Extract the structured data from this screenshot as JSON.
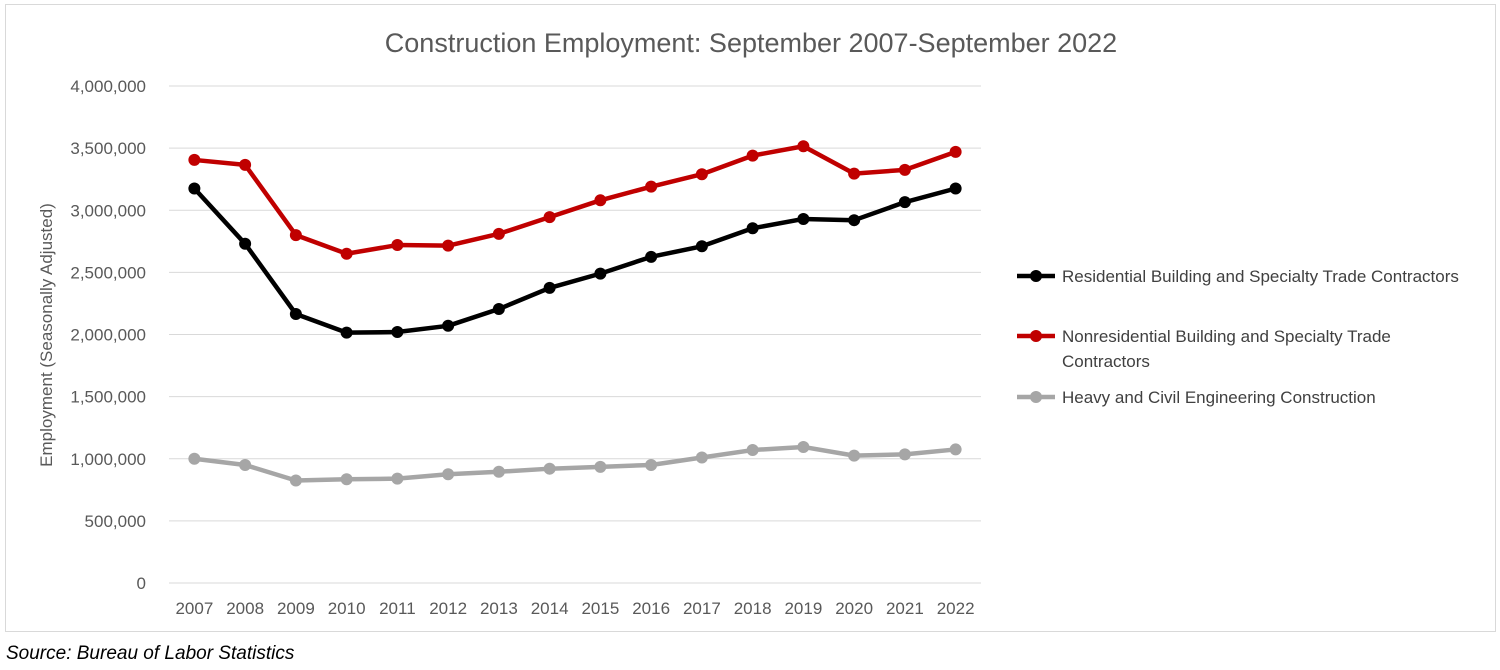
{
  "chart_data": {
    "type": "line",
    "title": "Construction Employment: September 2007-September 2022",
    "xlabel": "",
    "ylabel": "Employment (Seasonally Adjusted)",
    "ylim": [
      0,
      4000000
    ],
    "y_ticks": [
      0,
      500000,
      1000000,
      1500000,
      2000000,
      2500000,
      3000000,
      3500000,
      4000000
    ],
    "y_tick_labels": [
      "0",
      "500,000",
      "1,000,000",
      "1,500,000",
      "2,000,000",
      "2,500,000",
      "3,000,000",
      "3,500,000",
      "4,000,000"
    ],
    "grid": true,
    "legend_position": "right",
    "categories": [
      "2007",
      "2008",
      "2009",
      "2010",
      "2011",
      "2012",
      "2013",
      "2014",
      "2015",
      "2016",
      "2017",
      "2018",
      "2019",
      "2020",
      "2021",
      "2022"
    ],
    "series": [
      {
        "name": "Residential Building and Specialty Trade Contractors",
        "legend_lines": [
          "Residential Building and Specialty Trade Contractors"
        ],
        "color": "#000000",
        "values": [
          3175000,
          2730000,
          2165000,
          2015000,
          2020000,
          2070000,
          2205000,
          2375000,
          2490000,
          2625000,
          2710000,
          2855000,
          2930000,
          2920000,
          3065000,
          3175000
        ]
      },
      {
        "name": "Nonresidential Building and Specialty Trade Contractors",
        "legend_lines": [
          "Nonresidential Building and Specialty Trade",
          "Contractors"
        ],
        "color": "#c00000",
        "values": [
          3405000,
          3365000,
          2800000,
          2650000,
          2720000,
          2715000,
          2810000,
          2945000,
          3080000,
          3190000,
          3290000,
          3440000,
          3515000,
          3295000,
          3325000,
          3470000
        ]
      },
      {
        "name": "Heavy and Civil Engineering Construction",
        "legend_lines": [
          "Heavy and Civil Engineering Construction"
        ],
        "color": "#a6a6a6",
        "values": [
          1000000,
          950000,
          825000,
          835000,
          840000,
          875000,
          895000,
          920000,
          935000,
          950000,
          1010000,
          1070000,
          1095000,
          1025000,
          1035000,
          1075000
        ]
      }
    ]
  },
  "source_note": "Source: Bureau of Labor Statistics"
}
